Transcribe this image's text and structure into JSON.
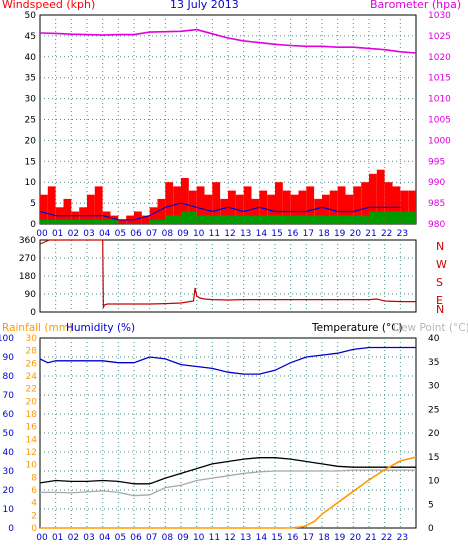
{
  "header": {
    "windspeed_label": "Windspeed (kph)",
    "date": "13 July 2013",
    "barometer_label": "Barometer (hpa)"
  },
  "colors": {
    "red": "#ff0000",
    "blue": "#0000cc",
    "green": "#009900",
    "magenta": "#e000e0",
    "orange": "#ff9a00",
    "dark_red": "#cc0000",
    "grid": "#4a8a8a",
    "text_dark": "#000000"
  },
  "mid": {
    "compass": [
      "N",
      "W",
      "S",
      "E",
      "N"
    ]
  },
  "bottom_header": {
    "rainfall_label": "Rainfall (mm)",
    "humidity_label": "Humidity (%)",
    "temperature_label": "Temperature (°C)",
    "dewpoint_label": "Dew Point (°C)"
  },
  "chart_data": [
    {
      "type": "line",
      "title": "Windspeed / Barometer",
      "x_ticks": [
        "00",
        "01",
        "02",
        "03",
        "04",
        "05",
        "06",
        "07",
        "08",
        "09",
        "10",
        "11",
        "12",
        "13",
        "14",
        "15",
        "16",
        "17",
        "18",
        "19",
        "20",
        "21",
        "22",
        "23"
      ],
      "y_left_ticks": [
        "0",
        "5",
        "10",
        "15",
        "20",
        "25",
        "30",
        "35",
        "40",
        "45",
        "50"
      ],
      "y_left_lim": [
        0,
        50
      ],
      "y_right_ticks": [
        "980",
        "985",
        "990",
        "995",
        "1000",
        "1005",
        "1010",
        "1015",
        "1020",
        "1025",
        "1030"
      ],
      "y_right_lim": [
        980,
        1030
      ],
      "series": [
        {
          "name": "Barometer (hpa)",
          "axis": "right",
          "color": "#e000e0",
          "x": [
            0,
            1,
            2,
            3,
            4,
            5,
            6,
            7,
            8,
            9,
            10,
            11,
            12,
            13,
            14,
            15,
            16,
            17,
            18,
            19,
            20,
            21,
            22,
            23,
            24
          ],
          "y": [
            1025.7,
            1025.6,
            1025.4,
            1025.3,
            1025.2,
            1025.3,
            1025.3,
            1025.9,
            1026.0,
            1026.1,
            1026.5,
            1025.5,
            1024.5,
            1023.8,
            1023.4,
            1023.0,
            1022.7,
            1022.5,
            1022.5,
            1022.3,
            1022.3,
            1022.0,
            1021.7,
            1021.2,
            1020.9
          ]
        },
        {
          "name": "Gust",
          "axis": "left",
          "color": "#ff0000",
          "x": [
            0,
            0.5,
            1,
            1.5,
            2,
            2.5,
            3,
            3.5,
            4,
            4.5,
            5,
            5.5,
            6,
            6.5,
            7,
            7.5,
            8,
            8.5,
            9,
            9.5,
            10,
            10.5,
            11,
            11.5,
            12,
            12.5,
            13,
            13.5,
            14,
            14.5,
            15,
            15.5,
            16,
            16.5,
            17,
            17.5,
            18,
            18.5,
            19,
            19.5,
            20,
            20.5,
            21,
            21.5,
            22,
            22.5,
            23,
            23.5
          ],
          "y": [
            7,
            9,
            4,
            6,
            3,
            4,
            7,
            9,
            3,
            2,
            1,
            2,
            3,
            2,
            4,
            6,
            10,
            9,
            11,
            8,
            9,
            7,
            10,
            6,
            8,
            7,
            9,
            6,
            8,
            7,
            10,
            8,
            7,
            8,
            9,
            6,
            7,
            8,
            9,
            7,
            9,
            10,
            12,
            13,
            10,
            9,
            8,
            8
          ]
        },
        {
          "name": "Wind",
          "axis": "left",
          "color": "#0000cc",
          "x": [
            0,
            1,
            2,
            3,
            4,
            5,
            6,
            7,
            8,
            9,
            10,
            11,
            12,
            13,
            14,
            15,
            16,
            17,
            18,
            19,
            20,
            21,
            22,
            23
          ],
          "y": [
            3,
            2,
            2,
            2,
            2,
            1,
            1,
            2,
            4,
            5,
            4,
            3,
            4,
            3,
            4,
            3,
            3,
            3,
            4,
            3,
            3,
            4,
            4,
            4
          ]
        },
        {
          "name": "Average",
          "axis": "left",
          "color": "#009900",
          "x": [
            0,
            1,
            2,
            3,
            4,
            5,
            6,
            7,
            8,
            9,
            10,
            11,
            12,
            13,
            14,
            15,
            16,
            17,
            18,
            19,
            20,
            21,
            22,
            23
          ],
          "y": [
            1,
            1,
            1,
            1,
            1,
            0,
            0,
            1,
            2,
            3,
            2,
            2,
            2,
            2,
            2,
            2,
            2,
            2,
            2,
            2,
            2,
            3,
            3,
            3
          ]
        }
      ]
    },
    {
      "type": "line",
      "title": "Wind Direction",
      "y_left_ticks": [
        "0",
        "90",
        "180",
        "270",
        "360"
      ],
      "y_lim": [
        0,
        360
      ],
      "series": [
        {
          "name": "Direction",
          "color": "#cc0000",
          "x": [
            0,
            0.3,
            0.6,
            1,
            2,
            3,
            4.0,
            4.05,
            4.1,
            4.3,
            5,
            6,
            7,
            8,
            9,
            9.8,
            9.9,
            10.0,
            10.2,
            10.5,
            11,
            12,
            13,
            14,
            15,
            16,
            17,
            18,
            19,
            20,
            21,
            21.5,
            22,
            23,
            24
          ],
          "y": [
            340,
            350,
            360,
            360,
            360,
            360,
            360,
            20,
            35,
            40,
            40,
            40,
            40,
            42,
            45,
            55,
            120,
            80,
            70,
            65,
            62,
            60,
            62,
            62,
            62,
            62,
            62,
            62,
            62,
            62,
            62,
            65,
            55,
            52,
            52
          ]
        }
      ]
    },
    {
      "type": "line",
      "title": "Humidity / Temperature / Rainfall",
      "y_left_ticks": [
        "0",
        "10",
        "20",
        "30",
        "40",
        "50",
        "60",
        "70",
        "80",
        "90",
        "100"
      ],
      "y_left_lim": [
        0,
        100
      ],
      "y_rain_ticks": [
        "0",
        "2",
        "4",
        "6",
        "8",
        "10",
        "12",
        "14",
        "16",
        "18",
        "20",
        "22",
        "24",
        "26",
        "28",
        "30"
      ],
      "y_rain_lim": [
        0,
        30
      ],
      "y_right_ticks": [
        "0",
        "5",
        "10",
        "15",
        "20",
        "25",
        "30",
        "35",
        "40"
      ],
      "y_right_lim": [
        0,
        40
      ],
      "series": [
        {
          "name": "Humidity (%)",
          "axis": "left",
          "color": "#0000cc",
          "x": [
            0,
            0.5,
            1,
            2,
            3,
            4,
            5,
            6,
            7,
            8,
            9,
            10,
            11,
            12,
            13,
            14,
            15,
            16,
            17,
            18,
            19,
            20,
            21,
            22,
            23,
            24
          ],
          "y": [
            89,
            87,
            88,
            88,
            88,
            88,
            87,
            87,
            90,
            89,
            86,
            85,
            84,
            82,
            81,
            81,
            83,
            87,
            90,
            91,
            92,
            94,
            95,
            95,
            95,
            95
          ]
        },
        {
          "name": "Temperature (°C)",
          "axis": "right",
          "color": "#000000",
          "x": [
            0,
            1,
            2,
            3,
            4,
            5,
            6,
            7,
            8,
            9,
            10,
            11,
            12,
            13,
            14,
            15,
            16,
            17,
            18,
            19,
            20,
            21,
            22,
            23,
            24
          ],
          "y": [
            9.5,
            10,
            9.8,
            9.8,
            10.0,
            9.8,
            9.3,
            9.3,
            10.5,
            11.5,
            12.5,
            13.5,
            14,
            14.5,
            14.8,
            14.8,
            14.5,
            14,
            13.5,
            13,
            12.8,
            12.8,
            12.8,
            12.8,
            12.8
          ]
        },
        {
          "name": "Dew Point (°C)",
          "axis": "right",
          "color": "#a8a8a8",
          "x": [
            0,
            1,
            2,
            3,
            4,
            5,
            6,
            7,
            8,
            9,
            10,
            11,
            12,
            13,
            14,
            15,
            16,
            17,
            18,
            19,
            20,
            21,
            22,
            23,
            24
          ],
          "y": [
            7.5,
            7.5,
            7.4,
            7.6,
            7.8,
            7.5,
            6.8,
            7.0,
            8.5,
            9.0,
            10.0,
            10.5,
            11.0,
            11.5,
            11.8,
            12.0,
            12.0,
            12.0,
            12.0,
            12.0,
            12.2,
            12.2,
            12.2,
            12.2,
            12.2
          ]
        },
        {
          "name": "Rainfall (mm)",
          "axis": "rain",
          "color": "#ff9a00",
          "x": [
            0,
            16,
            16.8,
            17.5,
            18,
            19,
            20,
            21,
            22,
            23,
            24
          ],
          "y": [
            0,
            0,
            0.2,
            1.0,
            2.2,
            4.0,
            5.8,
            7.6,
            9.2,
            10.6,
            11.2
          ]
        }
      ]
    }
  ]
}
